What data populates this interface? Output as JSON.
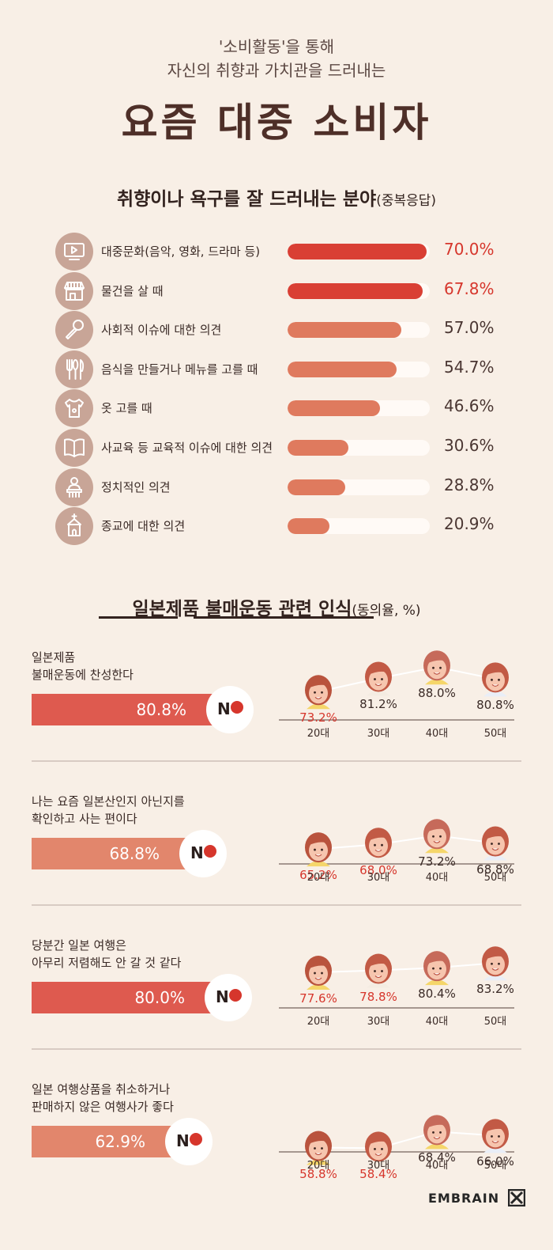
{
  "header": {
    "line1": "'소비활동'을 통해",
    "line2": "자신의 취향과 가치관을 드러내는",
    "title": "요즘 대중 소비자"
  },
  "section1": {
    "title": "취향이나 욕구를 잘 드러내는 분야",
    "note": "(중복응답)"
  },
  "section2": {
    "title": "일본제품 불매운동 관련 인식",
    "note": "(동의율, %)"
  },
  "colors": {
    "accent": "#d93f34",
    "salmon": "#df7a5e",
    "red_text": "#d6362c",
    "icon_bg": "#c8a597",
    "track": "#fffaf6"
  },
  "chart_data": [
    {
      "type": "bar",
      "title": "취향이나 욕구를 잘 드러내는 분야",
      "ylim": [
        0,
        100
      ],
      "categories": [
        "대중문화(음악, 영화, 드라마 등)",
        "물건을 살 때",
        "사회적 이슈에 대한 의견",
        "음식을 만들거나 메뉴를 고를 때",
        "옷 고를 때",
        "사교육 등 교육적 이슈에 대한 의견",
        "정치적인 의견",
        "종교에 대한 의견"
      ],
      "values": [
        70.0,
        67.8,
        57.0,
        54.7,
        46.6,
        30.6,
        28.8,
        20.9
      ],
      "labels": [
        "70.0%",
        "67.8%",
        "57.0%",
        "54.7%",
        "46.6%",
        "30.6%",
        "28.8%",
        "20.9%"
      ],
      "highlight": [
        true,
        true,
        false,
        false,
        false,
        false,
        false,
        false
      ],
      "icons": [
        "tv-icon",
        "shop-icon",
        "microphone-icon",
        "utensils-icon",
        "shirt-icon",
        "book-icon",
        "podium-icon",
        "church-icon"
      ]
    },
    {
      "type": "line",
      "title": "일본제품 불매운동 관련 인식",
      "ylim": [
        0,
        100
      ],
      "ages": [
        "20대",
        "30대",
        "40대",
        "50대"
      ],
      "questions": [
        {
          "text": [
            "일본제품",
            "불매운동에 찬성한다"
          ],
          "total": 80.8,
          "total_label": "80.8%",
          "values": [
            73.2,
            81.2,
            88.0,
            80.8
          ],
          "labels": [
            "73.2%",
            "81.2%",
            "88.0%",
            "80.8%"
          ],
          "red": [
            true,
            false,
            false,
            false
          ]
        },
        {
          "text": [
            "나는 요즘 일본산인지 아닌지를",
            "확인하고 사는 편이다"
          ],
          "total": 68.8,
          "total_label": "68.8%",
          "values": [
            65.2,
            68.0,
            73.2,
            68.8
          ],
          "labels": [
            "65.2%",
            "68.0%",
            "73.2%",
            "68.8%"
          ],
          "red": [
            true,
            true,
            false,
            false
          ]
        },
        {
          "text": [
            "당분간 일본 여행은",
            "아무리 저렴해도 안 갈 것 같다"
          ],
          "total": 80.0,
          "total_label": "80.0%",
          "values": [
            77.6,
            78.8,
            80.4,
            83.2
          ],
          "labels": [
            "77.6%",
            "78.8%",
            "80.4%",
            "83.2%"
          ],
          "red": [
            true,
            true,
            false,
            false
          ]
        },
        {
          "text": [
            "일본 여행상품을 취소하거나",
            "판매하지 않은 여행사가 좋다"
          ],
          "total": 62.9,
          "total_label": "62.9%",
          "values": [
            58.8,
            58.4,
            68.4,
            66.0
          ],
          "labels": [
            "58.8%",
            "58.4%",
            "68.4%",
            "66.0%"
          ],
          "red": [
            true,
            true,
            false,
            false
          ]
        }
      ]
    }
  ],
  "logo": "EMBRAIN"
}
